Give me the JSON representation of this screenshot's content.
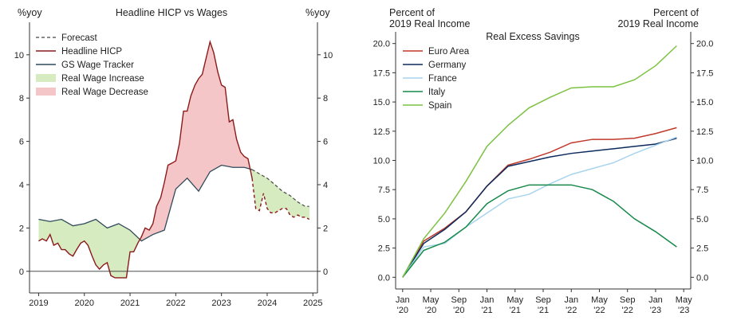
{
  "chart_data": [
    {
      "type": "line",
      "title": "Headline HICP vs Wages",
      "ylabel_left": "%yoy",
      "ylabel_right": "%yoy",
      "xlim": [
        2018.8,
        2025.1
      ],
      "ylim": [
        -1.0,
        11.5
      ],
      "x_ticks": [
        2019,
        2020,
        2021,
        2022,
        2023,
        2024,
        2025
      ],
      "y_ticks": [
        0,
        2,
        4,
        6,
        8,
        10
      ],
      "zero_line": true,
      "legend_position": "top-left",
      "legend": [
        "Forecast",
        "Headline HICP",
        "GS Wage Tracker",
        "Real Wage Increase",
        "Real Wage Decrease"
      ],
      "colors": {
        "hicp": "#8b1a1a",
        "wage": "#2f4a5a",
        "increase": "#d7ebc1",
        "decrease": "#f5c6c8",
        "forecast": "#444444"
      },
      "series": [
        {
          "name": "Headline HICP",
          "x": [
            2019.0,
            2019.08,
            2019.17,
            2019.25,
            2019.33,
            2019.42,
            2019.5,
            2019.58,
            2019.67,
            2019.75,
            2019.83,
            2019.92,
            2020.0,
            2020.08,
            2020.17,
            2020.25,
            2020.33,
            2020.42,
            2020.5,
            2020.58,
            2020.67,
            2020.75,
            2020.83,
            2020.92,
            2021.0,
            2021.08,
            2021.17,
            2021.25,
            2021.33,
            2021.42,
            2021.5,
            2021.58,
            2021.67,
            2021.75,
            2021.83,
            2021.92,
            2022.0,
            2022.08,
            2022.17,
            2022.25,
            2022.33,
            2022.42,
            2022.5,
            2022.58,
            2022.67,
            2022.75,
            2022.83,
            2022.92,
            2023.0,
            2023.08,
            2023.17,
            2023.25,
            2023.33,
            2023.42,
            2023.5,
            2023.58,
            2023.67
          ],
          "values": [
            1.4,
            1.5,
            1.4,
            1.7,
            1.2,
            1.3,
            1.0,
            1.0,
            0.8,
            0.7,
            1.0,
            1.3,
            1.4,
            1.2,
            0.7,
            0.3,
            0.1,
            0.3,
            0.4,
            -0.2,
            -0.3,
            -0.3,
            -0.3,
            -0.3,
            0.9,
            0.9,
            1.3,
            1.6,
            2.0,
            1.9,
            2.2,
            3.0,
            3.4,
            4.1,
            4.9,
            5.0,
            5.1,
            5.9,
            7.4,
            7.4,
            8.1,
            8.6,
            8.9,
            9.1,
            9.9,
            10.6,
            10.1,
            9.2,
            8.6,
            8.5,
            6.9,
            7.0,
            6.1,
            5.5,
            5.3,
            5.2,
            4.3
          ]
        },
        {
          "name": "GS Wage Tracker",
          "x": [
            2019.0,
            2019.25,
            2019.5,
            2019.75,
            2020.0,
            2020.25,
            2020.5,
            2020.75,
            2021.0,
            2021.25,
            2021.5,
            2021.75,
            2022.0,
            2022.25,
            2022.5,
            2022.75,
            2023.0,
            2023.25,
            2023.5,
            2023.67
          ],
          "values": [
            2.4,
            2.3,
            2.4,
            2.1,
            2.2,
            2.4,
            2.0,
            2.2,
            1.9,
            1.4,
            1.7,
            1.9,
            3.8,
            4.3,
            3.7,
            4.6,
            4.9,
            4.8,
            4.8,
            4.7
          ]
        },
        {
          "name": "Forecast",
          "kind": "wage",
          "x": [
            2023.67,
            2023.83,
            2024.0,
            2024.17,
            2024.33,
            2024.5,
            2024.67,
            2024.83,
            2024.92
          ],
          "values": [
            4.7,
            4.5,
            4.3,
            4.0,
            3.7,
            3.5,
            3.2,
            3.0,
            3.0
          ]
        },
        {
          "name": "Forecast",
          "kind": "hicp",
          "x": [
            2023.67,
            2023.75,
            2023.83,
            2023.92,
            2024.0,
            2024.08,
            2024.17,
            2024.25,
            2024.33,
            2024.42,
            2024.5,
            2024.58,
            2024.67,
            2024.75,
            2024.83,
            2024.92
          ],
          "values": [
            4.3,
            2.9,
            2.8,
            3.6,
            2.9,
            2.7,
            2.7,
            2.8,
            2.9,
            2.9,
            2.6,
            2.5,
            2.6,
            2.5,
            2.5,
            2.4
          ]
        }
      ]
    },
    {
      "type": "line",
      "title": "Real Excess Savings",
      "ylabel_left": "Percent of\n2019 Real Income",
      "ylabel_right": "Percent of\n2019 Real Income",
      "xlim": [
        -1.0,
        41.0
      ],
      "ylim": [
        -1.0,
        21.0
      ],
      "x_ticks": [
        {
          "x": 0,
          "label": [
            "Jan",
            "'20"
          ]
        },
        {
          "x": 4,
          "label": [
            "May",
            "'20"
          ]
        },
        {
          "x": 8,
          "label": [
            "Sep",
            "'20"
          ]
        },
        {
          "x": 12,
          "label": [
            "Jan",
            "'21"
          ]
        },
        {
          "x": 16,
          "label": [
            "May",
            "'21"
          ]
        },
        {
          "x": 20,
          "label": [
            "Sep",
            "'21"
          ]
        },
        {
          "x": 24,
          "label": [
            "Jan",
            "'22"
          ]
        },
        {
          "x": 28,
          "label": [
            "May",
            "'22"
          ]
        },
        {
          "x": 32,
          "label": [
            "Sep",
            "'22"
          ]
        },
        {
          "x": 36,
          "label": [
            "Jan",
            "'23"
          ]
        },
        {
          "x": 40,
          "label": [
            "May",
            "'23"
          ]
        }
      ],
      "y_ticks": [
        0.0,
        2.5,
        5.0,
        7.5,
        10.0,
        12.5,
        15.0,
        17.5,
        20.0
      ],
      "legend_position": "top-left",
      "series": [
        {
          "name": "Euro Area",
          "color": "#c0392b",
          "x": [
            0,
            3,
            6,
            9,
            12,
            15,
            18,
            21,
            24,
            27,
            30,
            33,
            36,
            39
          ],
          "values": [
            0,
            3.1,
            4.2,
            5.6,
            7.8,
            9.6,
            10.1,
            10.7,
            11.5,
            11.8,
            11.8,
            11.9,
            12.3,
            12.8
          ]
        },
        {
          "name": "Germany",
          "color": "#0d2a5c",
          "x": [
            0,
            3,
            6,
            9,
            12,
            15,
            18,
            21,
            24,
            27,
            30,
            33,
            36,
            39
          ],
          "values": [
            0,
            2.9,
            4.1,
            5.6,
            7.8,
            9.5,
            9.9,
            10.3,
            10.6,
            10.8,
            11.0,
            11.2,
            11.4,
            11.9
          ]
        },
        {
          "name": "France",
          "color": "#a8d4ee",
          "x": [
            0,
            3,
            6,
            9,
            12,
            15,
            18,
            21,
            24,
            27,
            30,
            33,
            36,
            39
          ],
          "values": [
            0,
            2.6,
            2.9,
            4.3,
            5.5,
            6.7,
            7.1,
            8.0,
            8.8,
            9.3,
            9.8,
            10.6,
            11.3,
            12.0
          ]
        },
        {
          "name": "Italy",
          "color": "#16894a",
          "x": [
            0,
            3,
            6,
            9,
            12,
            15,
            18,
            21,
            24,
            27,
            30,
            33,
            36,
            39
          ],
          "values": [
            0,
            2.3,
            3.0,
            4.3,
            6.3,
            7.4,
            7.9,
            7.9,
            7.9,
            7.5,
            6.5,
            5.0,
            3.9,
            2.6
          ]
        },
        {
          "name": "Spain",
          "color": "#7cc242",
          "x": [
            0,
            3,
            6,
            9,
            12,
            15,
            18,
            21,
            24,
            27,
            30,
            33,
            36,
            39
          ],
          "values": [
            0,
            3.3,
            5.5,
            8.2,
            11.2,
            13.0,
            14.5,
            15.4,
            16.2,
            16.3,
            16.3,
            16.9,
            18.1,
            19.8
          ]
        }
      ]
    }
  ]
}
